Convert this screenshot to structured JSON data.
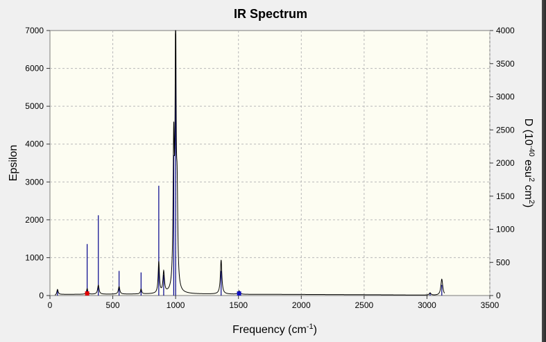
{
  "chart_data": {
    "type": "line",
    "title": "IR Spectrum",
    "xlabel": "Frequency (cm⁻¹)",
    "ylabel": "Epsilon",
    "ylabel_right": "D (10⁻⁴⁰ esu² cm²)",
    "xlim": [
      0,
      3500
    ],
    "ylim": [
      0,
      7000
    ],
    "ylim_right": [
      0,
      4000
    ],
    "x_ticks": [
      0,
      500,
      1000,
      1500,
      2000,
      2500,
      3000,
      3500
    ],
    "y_ticks": [
      0,
      1000,
      2000,
      3000,
      4000,
      5000,
      6000,
      7000
    ],
    "y_ticks_right": [
      0,
      500,
      1000,
      1500,
      2000,
      2500,
      3000,
      3500,
      4000
    ],
    "grid": true,
    "series": [
      {
        "kind": "spectrum",
        "color": "#000000",
        "peaks": [
          {
            "x": 60,
            "y": 130,
            "w": 6
          },
          {
            "x": 296,
            "y": 150,
            "w": 6
          },
          {
            "x": 385,
            "y": 240,
            "w": 7
          },
          {
            "x": 550,
            "y": 200,
            "w": 7
          },
          {
            "x": 725,
            "y": 130,
            "w": 6
          },
          {
            "x": 866,
            "y": 830,
            "w": 6
          },
          {
            "x": 905,
            "y": 560,
            "w": 7
          },
          {
            "x": 985,
            "y": 3750,
            "w": 6
          },
          {
            "x": 1000,
            "y": 6780,
            "w": 5
          },
          {
            "x": 1012,
            "y": 2200,
            "w": 6
          },
          {
            "x": 1362,
            "y": 900,
            "w": 7
          },
          {
            "x": 1505,
            "y": 90,
            "w": 8
          },
          {
            "x": 3025,
            "y": 60,
            "w": 8
          },
          {
            "x": 3118,
            "y": 430,
            "w": 9
          }
        ],
        "baseline": [
          {
            "x": 60,
            "y": 30
          },
          {
            "x": 1100,
            "y": 40
          },
          {
            "x": 1400,
            "y": 35
          },
          {
            "x": 1550,
            "y": 30
          },
          {
            "x": 1900,
            "y": 30
          },
          {
            "x": 2600,
            "y": 20
          },
          {
            "x": 3000,
            "y": 10
          },
          {
            "x": 3140,
            "y": 0
          }
        ]
      },
      {
        "kind": "sticks",
        "color": "#00008b",
        "values": [
          {
            "x": 60,
            "y": 160
          },
          {
            "x": 296,
            "y": 1360
          },
          {
            "x": 385,
            "y": 2120
          },
          {
            "x": 550,
            "y": 650
          },
          {
            "x": 725,
            "y": 610
          },
          {
            "x": 866,
            "y": 2900
          },
          {
            "x": 905,
            "y": 550
          },
          {
            "x": 985,
            "y": 3710
          },
          {
            "x": 1000,
            "y": 6800
          },
          {
            "x": 1362,
            "y": 650
          },
          {
            "x": 1505,
            "y": 110
          },
          {
            "x": 3025,
            "y": 60
          },
          {
            "x": 3118,
            "y": 280
          }
        ]
      }
    ],
    "markers": [
      {
        "x": 296,
        "color": "#e00000",
        "shape": "square"
      },
      {
        "x": 1505,
        "color": "#1010c0",
        "shape": "square"
      }
    ]
  }
}
